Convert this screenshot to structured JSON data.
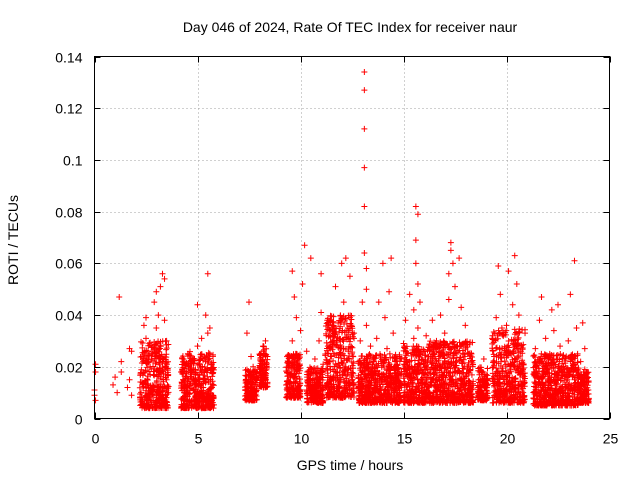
{
  "chart_data": {
    "type": "scatter",
    "title": "Day 046 of 2024, Rate Of TEC Index for receiver naur",
    "xlabel": "GPS time / hours",
    "ylabel": "ROTI / TECUs",
    "xlim": [
      0,
      25
    ],
    "ylim": [
      0,
      0.14
    ],
    "x_ticks": [
      0,
      5,
      10,
      15,
      20,
      25
    ],
    "x_tick_labels": [
      "0",
      "5",
      "10",
      "15",
      "20",
      "25"
    ],
    "y_ticks": [
      0,
      0.02,
      0.04,
      0.06,
      0.08,
      0.1,
      0.12,
      0.14
    ],
    "y_tick_labels": [
      "0",
      "0.02",
      "0.04",
      "0.06",
      "0.08",
      "0.1",
      "0.12",
      "0.14"
    ],
    "grid": true,
    "marker": "+",
    "color": "#ff0000",
    "series": [
      {
        "name": "ROTI",
        "points": [
          [
            0.0,
            0.009
          ],
          [
            0.0,
            0.011
          ],
          [
            0.05,
            0.021
          ],
          [
            0.05,
            0.018
          ],
          [
            0.05,
            0.007
          ],
          [
            0.9,
            0.013
          ],
          [
            1.0,
            0.016
          ],
          [
            1.1,
            0.01
          ],
          [
            1.2,
            0.047
          ],
          [
            1.3,
            0.022
          ],
          [
            1.3,
            0.018
          ],
          [
            1.6,
            0.012
          ],
          [
            1.7,
            0.027
          ],
          [
            1.7,
            0.015
          ],
          [
            1.8,
            0.009
          ],
          [
            1.8,
            0.026
          ],
          [
            2.3,
            0.024
          ],
          [
            2.3,
            0.014
          ],
          [
            2.4,
            0.036
          ],
          [
            2.5,
            0.039
          ],
          [
            2.5,
            0.031
          ],
          [
            2.6,
            0.005
          ],
          [
            2.7,
            0.02
          ],
          [
            2.8,
            0.011
          ],
          [
            2.9,
            0.027
          ],
          [
            2.9,
            0.045
          ],
          [
            3.0,
            0.035
          ],
          [
            3.0,
            0.049
          ],
          [
            3.1,
            0.017
          ],
          [
            3.1,
            0.04
          ],
          [
            3.2,
            0.051
          ],
          [
            3.2,
            0.028
          ],
          [
            3.3,
            0.056
          ],
          [
            3.3,
            0.022
          ],
          [
            3.4,
            0.054
          ],
          [
            3.4,
            0.038
          ],
          [
            3.5,
            0.015
          ],
          [
            3.5,
            0.03
          ],
          [
            3.4,
            0.007
          ],
          [
            4.2,
            0.018
          ],
          [
            4.3,
            0.015
          ],
          [
            4.4,
            0.009
          ],
          [
            4.5,
            0.012
          ],
          [
            4.6,
            0.022
          ],
          [
            4.7,
            0.016
          ],
          [
            4.8,
            0.011
          ],
          [
            4.9,
            0.019
          ],
          [
            5.0,
            0.044
          ],
          [
            5.0,
            0.028
          ],
          [
            5.1,
            0.021
          ],
          [
            5.2,
            0.031
          ],
          [
            5.3,
            0.018
          ],
          [
            5.4,
            0.04
          ],
          [
            5.5,
            0.033
          ],
          [
            5.5,
            0.056
          ],
          [
            5.6,
            0.025
          ],
          [
            5.6,
            0.035
          ],
          [
            5.7,
            0.012
          ],
          [
            5.5,
            0.007
          ],
          [
            7.4,
            0.033
          ],
          [
            7.5,
            0.045
          ],
          [
            7.5,
            0.017
          ],
          [
            7.6,
            0.024
          ],
          [
            7.7,
            0.011
          ],
          [
            7.8,
            0.014
          ],
          [
            7.7,
            0.02
          ],
          [
            8.1,
            0.022
          ],
          [
            8.2,
            0.026
          ],
          [
            8.3,
            0.03
          ],
          [
            8.3,
            0.016
          ],
          [
            8.2,
            0.012
          ],
          [
            9.4,
            0.022
          ],
          [
            9.5,
            0.013
          ],
          [
            9.6,
            0.03
          ],
          [
            9.7,
            0.017
          ],
          [
            9.8,
            0.025
          ],
          [
            9.6,
            0.057
          ],
          [
            9.7,
            0.047
          ],
          [
            9.8,
            0.039
          ],
          [
            9.9,
            0.02
          ],
          [
            10.0,
            0.034
          ],
          [
            10.1,
            0.052
          ],
          [
            10.2,
            0.067
          ],
          [
            10.3,
            0.011
          ],
          [
            10.3,
            0.026
          ],
          [
            10.4,
            0.015
          ],
          [
            10.5,
            0.062
          ],
          [
            10.5,
            0.008
          ],
          [
            10.6,
            0.018
          ],
          [
            10.7,
            0.023
          ],
          [
            10.8,
            0.014
          ],
          [
            10.9,
            0.03
          ],
          [
            11.0,
            0.056
          ],
          [
            11.0,
            0.041
          ],
          [
            11.1,
            0.012
          ],
          [
            11.1,
            0.021
          ],
          [
            11.3,
            0.038
          ],
          [
            11.4,
            0.032
          ],
          [
            11.5,
            0.024
          ],
          [
            11.6,
            0.015
          ],
          [
            11.7,
            0.051
          ],
          [
            11.8,
            0.018
          ],
          [
            11.9,
            0.012
          ],
          [
            12.0,
            0.06
          ],
          [
            12.1,
            0.045
          ],
          [
            12.1,
            0.027
          ],
          [
            12.2,
            0.062
          ],
          [
            12.2,
            0.02
          ],
          [
            12.3,
            0.035
          ],
          [
            12.3,
            0.011
          ],
          [
            12.4,
            0.055
          ],
          [
            12.4,
            0.039
          ],
          [
            12.5,
            0.016
          ],
          [
            12.5,
            0.025
          ],
          [
            12.6,
            0.033
          ],
          [
            12.6,
            0.013
          ],
          [
            12.8,
            0.022
          ],
          [
            12.9,
            0.03
          ],
          [
            13.0,
            0.018
          ],
          [
            13.0,
            0.045
          ],
          [
            13.1,
            0.134
          ],
          [
            13.1,
            0.127
          ],
          [
            13.1,
            0.112
          ],
          [
            13.1,
            0.097
          ],
          [
            13.1,
            0.082
          ],
          [
            13.1,
            0.064
          ],
          [
            13.2,
            0.058
          ],
          [
            13.2,
            0.05
          ],
          [
            13.2,
            0.036
          ],
          [
            13.2,
            0.024
          ],
          [
            13.3,
            0.014
          ],
          [
            13.4,
            0.028
          ],
          [
            13.5,
            0.02
          ],
          [
            13.6,
            0.012
          ],
          [
            13.7,
            0.031
          ],
          [
            13.8,
            0.045
          ],
          [
            13.9,
            0.022
          ],
          [
            14.0,
            0.06
          ],
          [
            14.0,
            0.017
          ],
          [
            14.1,
            0.039
          ],
          [
            14.2,
            0.027
          ],
          [
            14.3,
            0.049
          ],
          [
            14.4,
            0.062
          ],
          [
            14.4,
            0.014
          ],
          [
            14.5,
            0.033
          ],
          [
            14.6,
            0.02
          ],
          [
            14.7,
            0.011
          ],
          [
            14.8,
            0.024
          ],
          [
            14.9,
            0.018
          ],
          [
            15.0,
            0.029
          ],
          [
            15.1,
            0.038
          ],
          [
            15.2,
            0.013
          ],
          [
            15.3,
            0.048
          ],
          [
            15.3,
            0.022
          ],
          [
            15.4,
            0.016
          ],
          [
            15.5,
            0.042
          ],
          [
            15.5,
            0.031
          ],
          [
            15.6,
            0.082
          ],
          [
            15.6,
            0.069
          ],
          [
            15.6,
            0.06
          ],
          [
            15.7,
            0.079
          ],
          [
            15.7,
            0.052
          ],
          [
            15.7,
            0.035
          ],
          [
            15.8,
            0.045
          ],
          [
            15.8,
            0.026
          ],
          [
            15.9,
            0.014
          ],
          [
            16.0,
            0.019
          ],
          [
            16.1,
            0.032
          ],
          [
            16.3,
            0.024
          ],
          [
            16.4,
            0.038
          ],
          [
            16.5,
            0.017
          ],
          [
            16.6,
            0.03
          ],
          [
            16.7,
            0.012
          ],
          [
            16.8,
            0.04
          ],
          [
            16.9,
            0.021
          ],
          [
            17.0,
            0.033
          ],
          [
            17.1,
            0.025
          ],
          [
            17.2,
            0.046
          ],
          [
            17.2,
            0.056
          ],
          [
            17.3,
            0.068
          ],
          [
            17.3,
            0.065
          ],
          [
            17.4,
            0.06
          ],
          [
            17.4,
            0.018
          ],
          [
            17.5,
            0.051
          ],
          [
            17.6,
            0.028
          ],
          [
            17.7,
            0.062
          ],
          [
            17.8,
            0.043
          ],
          [
            17.9,
            0.013
          ],
          [
            18.0,
            0.036
          ],
          [
            18.1,
            0.02
          ],
          [
            18.2,
            0.01
          ],
          [
            18.3,
            0.025
          ],
          [
            18.7,
            0.018
          ],
          [
            18.8,
            0.014
          ],
          [
            18.9,
            0.023
          ],
          [
            19.0,
            0.012
          ],
          [
            19.3,
            0.031
          ],
          [
            19.4,
            0.024
          ],
          [
            19.5,
            0.039
          ],
          [
            19.6,
            0.059
          ],
          [
            19.7,
            0.048
          ],
          [
            19.8,
            0.016
          ],
          [
            19.9,
            0.027
          ],
          [
            20.0,
            0.036
          ],
          [
            20.1,
            0.057
          ],
          [
            20.2,
            0.021
          ],
          [
            20.3,
            0.044
          ],
          [
            20.4,
            0.063
          ],
          [
            20.4,
            0.03
          ],
          [
            20.5,
            0.052
          ],
          [
            20.6,
            0.04
          ],
          [
            20.6,
            0.013
          ],
          [
            20.7,
            0.026
          ],
          [
            20.8,
            0.019
          ],
          [
            20.9,
            0.033
          ],
          [
            21.4,
            0.027
          ],
          [
            21.5,
            0.016
          ],
          [
            21.6,
            0.038
          ],
          [
            21.7,
            0.047
          ],
          [
            21.7,
            0.022
          ],
          [
            21.8,
            0.012
          ],
          [
            21.9,
            0.031
          ],
          [
            22.0,
            0.019
          ],
          [
            22.1,
            0.025
          ],
          [
            22.2,
            0.042
          ],
          [
            22.3,
            0.034
          ],
          [
            22.4,
            0.014
          ],
          [
            22.5,
            0.044
          ],
          [
            22.6,
            0.028
          ],
          [
            22.7,
            0.02
          ],
          [
            22.8,
            0.011
          ],
          [
            22.9,
            0.017
          ],
          [
            23.0,
            0.03
          ],
          [
            23.1,
            0.048
          ],
          [
            23.2,
            0.023
          ],
          [
            23.3,
            0.061
          ],
          [
            23.3,
            0.015
          ],
          [
            23.4,
            0.035
          ],
          [
            23.5,
            0.012
          ],
          [
            23.6,
            0.022
          ],
          [
            23.7,
            0.014
          ],
          [
            23.8,
            0.019
          ],
          [
            23.9,
            0.011
          ],
          [
            23.8,
            0.027
          ],
          [
            23.7,
            0.037
          ]
        ],
        "dense_bands": [
          {
            "x": [
              2.2,
              3.6
            ],
            "y": [
              0.004,
              0.03
            ]
          },
          {
            "x": [
              4.2,
              5.8
            ],
            "y": [
              0.004,
              0.026
            ]
          },
          {
            "x": [
              7.3,
              7.9
            ],
            "y": [
              0.007,
              0.019
            ]
          },
          {
            "x": [
              8.0,
              8.4
            ],
            "y": [
              0.012,
              0.028
            ]
          },
          {
            "x": [
              9.3,
              10.0
            ],
            "y": [
              0.008,
              0.025
            ]
          },
          {
            "x": [
              10.3,
              11.1
            ],
            "y": [
              0.006,
              0.02
            ]
          },
          {
            "x": [
              11.2,
              12.6
            ],
            "y": [
              0.008,
              0.04
            ]
          },
          {
            "x": [
              12.8,
              14.9
            ],
            "y": [
              0.006,
              0.025
            ]
          },
          {
            "x": [
              15.0,
              16.2
            ],
            "y": [
              0.006,
              0.028
            ]
          },
          {
            "x": [
              16.2,
              18.4
            ],
            "y": [
              0.006,
              0.03
            ]
          },
          {
            "x": [
              18.6,
              19.1
            ],
            "y": [
              0.007,
              0.02
            ]
          },
          {
            "x": [
              19.3,
              20.9
            ],
            "y": [
              0.006,
              0.035
            ]
          },
          {
            "x": [
              21.3,
              23.5
            ],
            "y": [
              0.005,
              0.025
            ]
          },
          {
            "x": [
              23.5,
              24.0
            ],
            "y": [
              0.006,
              0.018
            ]
          }
        ]
      }
    ]
  }
}
